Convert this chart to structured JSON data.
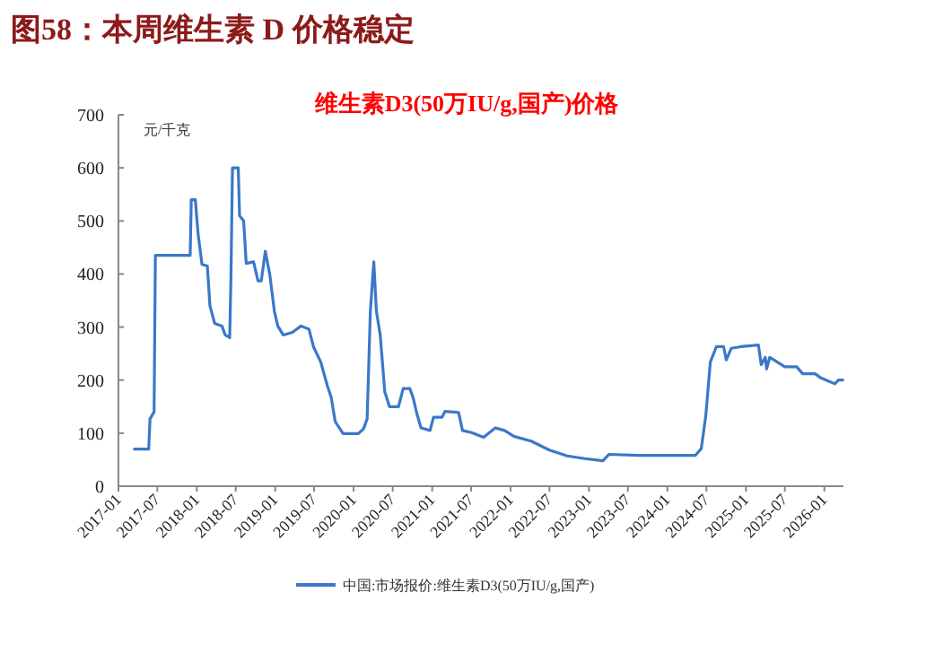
{
  "chart_data": {
    "type": "line",
    "title": "图58：本周维生素 D 价格稳定",
    "subtitle": "维生素D3(50万IU/g,国产)价格",
    "ylabel": "元/千克",
    "x": [
      "2017-03-16",
      "2017-05-22",
      "2017-05-28",
      "2017-06-16",
      "2017-06-22",
      "2017-12-01",
      "2017-12-06",
      "2017-12-25",
      "2018-01-07",
      "2018-01-25",
      "2018-02-19",
      "2018-03-03",
      "2018-03-25",
      "2018-04-28",
      "2018-05-13",
      "2018-06-03",
      "2018-06-09",
      "2018-06-16",
      "2018-07-13",
      "2018-07-19",
      "2018-08-07",
      "2018-08-19",
      "2018-09-22",
      "2018-10-13",
      "2018-10-28",
      "2018-11-16",
      "2018-12-07",
      "2018-12-28",
      "2019-01-13",
      "2019-02-07",
      "2019-03-22",
      "2019-05-01",
      "2019-06-07",
      "2019-06-28",
      "2019-08-01",
      "2019-09-01",
      "2019-09-19",
      "2019-10-07",
      "2019-11-13",
      "2020-01-22",
      "2020-02-16",
      "2020-03-04",
      "2020-03-19",
      "2020-04-04",
      "2020-04-16",
      "2020-05-04",
      "2020-05-25",
      "2020-06-16",
      "2020-07-28",
      "2020-08-19",
      "2020-09-19",
      "2020-10-04",
      "2020-10-22",
      "2020-11-10",
      "2020-12-22",
      "2021-01-07",
      "2021-02-16",
      "2021-03-01",
      "2021-05-04",
      "2021-05-22",
      "2021-07-04",
      "2021-08-28",
      "2021-10-22",
      "2021-12-04",
      "2022-01-16",
      "2022-04-07",
      "2022-07-01",
      "2022-09-22",
      "2022-12-13",
      "2023-03-07",
      "2023-04-04",
      "2023-08-22",
      "2024-05-10",
      "2024-06-07",
      "2024-06-28",
      "2024-07-19",
      "2024-08-16",
      "2024-09-19",
      "2024-10-01",
      "2024-10-25",
      "2024-12-07",
      "2025-02-28",
      "2025-03-13",
      "2025-04-01",
      "2025-04-07",
      "2025-04-22",
      "2025-07-01",
      "2025-08-25",
      "2025-09-22",
      "2025-11-19",
      "2025-12-16",
      "2026-02-19",
      "2026-03-07",
      "2026-03-28"
    ],
    "series": [
      {
        "name": "中国:市场报价:维生素D3(50万IU/g,国产)",
        "color": "#3a78c9",
        "values": [
          70,
          70,
          127,
          140,
          435,
          435,
          540,
          540,
          475,
          418,
          415,
          340,
          307,
          302,
          285,
          280,
          398,
          600,
          600,
          510,
          500,
          420,
          423,
          387,
          387,
          443,
          398,
          330,
          302,
          285,
          290,
          302,
          296,
          263,
          234,
          189,
          167,
          122,
          99,
          99,
          108,
          127,
          330,
          423,
          330,
          285,
          178,
          150,
          150,
          184,
          184,
          167,
          136,
          110,
          105,
          130,
          130,
          141,
          139,
          105,
          101,
          92,
          110,
          105,
          94,
          85,
          68,
          57,
          52,
          48,
          60,
          58,
          58,
          71,
          133,
          234,
          263,
          263,
          238,
          260,
          263,
          266,
          229,
          243,
          221,
          243,
          225,
          225,
          212,
          212,
          204,
          193,
          200,
          200
        ]
      }
    ],
    "xlim": [
      "2017-01-01",
      "2026-03-31"
    ],
    "xticks": [
      "2017-01",
      "2017-07",
      "2018-01",
      "2018-07",
      "2019-01",
      "2019-07",
      "2020-01",
      "2020-07",
      "2021-01",
      "2021-07",
      "2022-01",
      "2022-07",
      "2023-01",
      "2023-07",
      "2024-01",
      "2024-07",
      "2025-01",
      "2025-07",
      "2026-01"
    ],
    "ylim": [
      0,
      700
    ],
    "yticks": [
      0,
      100,
      200,
      300,
      400,
      500,
      600,
      700
    ],
    "legend": "bottom",
    "grid": false,
    "marker": "none",
    "line_style": "solid"
  }
}
